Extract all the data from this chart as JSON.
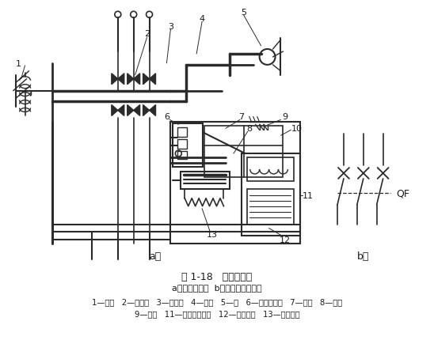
{
  "title_line1": "图 1-18   低压断路器",
  "title_line2": "a）结构示意图  b）图形与文字符号",
  "legend_line1": "1—弹簧   2—主触头   3—传动杆   4—锁扣   5—轴   6—电磁脱扣器   7—杠杆   8—轭铁",
  "legend_line2": "9—弹簧   11—欠电压脱扣器   12—双金属片   13—发热元件",
  "label_a": "a）",
  "label_b": "b）",
  "label_QF": "QF",
  "bg_color": "#ffffff",
  "line_color": "#2a2a2a",
  "text_color": "#1a1a1a",
  "fig_width": 5.48,
  "fig_height": 4.31,
  "dpi": 100
}
